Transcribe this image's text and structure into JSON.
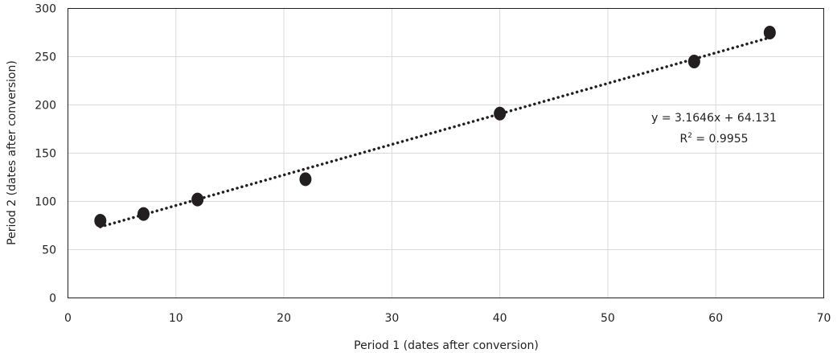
{
  "chart_data": {
    "type": "scatter",
    "xlabel": "Period 1 (dates after conversion)",
    "ylabel": "Period 2 (dates after conversion)",
    "xlim": [
      0,
      70
    ],
    "ylim": [
      0,
      300
    ],
    "xticks": [
      0,
      10,
      20,
      30,
      40,
      50,
      60,
      70
    ],
    "yticks": [
      0,
      50,
      100,
      150,
      200,
      250,
      300
    ],
    "grid": true,
    "points": [
      {
        "x": 3,
        "y": 80
      },
      {
        "x": 7,
        "y": 87
      },
      {
        "x": 12,
        "y": 102
      },
      {
        "x": 22,
        "y": 123
      },
      {
        "x": 40,
        "y": 191
      },
      {
        "x": 58,
        "y": 245
      },
      {
        "x": 65,
        "y": 275
      }
    ],
    "trendline": {
      "type": "linear",
      "dotted": true,
      "slope": 3.1646,
      "intercept": 64.131,
      "x_range": [
        3,
        65
      ],
      "equation_label": "y = 3.1646x + 64.131",
      "r2_prefix": "R",
      "r2_sup": "2",
      "r2_suffix": " = 0.9955"
    },
    "colors": {
      "marker": "#231f20",
      "gridline": "#d9d9d9",
      "axis": "#231f20"
    }
  }
}
